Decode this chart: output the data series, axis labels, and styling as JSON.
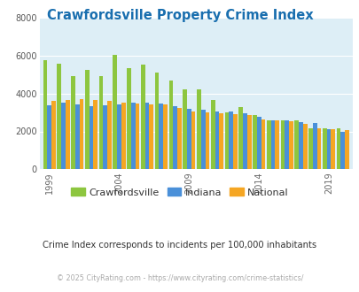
{
  "title": "Crawfordsville Property Crime Index",
  "title_color": "#1a6faf",
  "years": [
    1999,
    2000,
    2001,
    2002,
    2003,
    2004,
    2005,
    2006,
    2007,
    2008,
    2009,
    2010,
    2011,
    2012,
    2013,
    2014,
    2015,
    2016,
    2017,
    2018,
    2019,
    2020
  ],
  "crawfordsville": [
    5750,
    5550,
    4900,
    5250,
    4900,
    6020,
    5320,
    5530,
    5080,
    4680,
    4200,
    4200,
    3650,
    3000,
    3300,
    2850,
    2600,
    2600,
    2600,
    2150,
    2180,
    2150
  ],
  "indiana": [
    3380,
    3520,
    3400,
    3350,
    3380,
    3430,
    3500,
    3500,
    3450,
    3320,
    3200,
    3120,
    3050,
    3060,
    2960,
    2760,
    2590,
    2590,
    2500,
    2420,
    2130,
    2000
  ],
  "national": [
    3600,
    3650,
    3700,
    3650,
    3600,
    3500,
    3450,
    3430,
    3400,
    3250,
    3050,
    3000,
    2940,
    2900,
    2870,
    2620,
    2600,
    2520,
    2410,
    2150,
    2110,
    2060
  ],
  "crawfordsville_color": "#8dc63f",
  "indiana_color": "#4a90d9",
  "national_color": "#f5a623",
  "plot_bg": "#ddeef6",
  "ylim": [
    0,
    8000
  ],
  "yticks": [
    0,
    2000,
    4000,
    6000,
    8000
  ],
  "x_tick_positions": [
    1999,
    2004,
    2009,
    2014,
    2019
  ],
  "subtitle": "Crime Index corresponds to incidents per 100,000 inhabitants",
  "subtitle_color": "#333333",
  "footer": "© 2025 CityRating.com - https://www.cityrating.com/crime-statistics/",
  "footer_color": "#aaaaaa",
  "footer_link_color": "#4a90d9"
}
